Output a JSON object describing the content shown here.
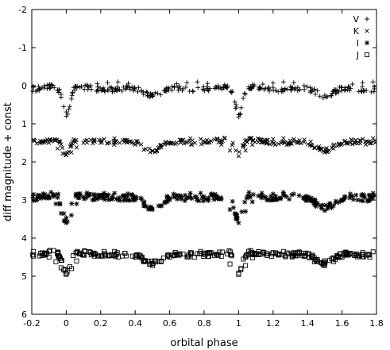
{
  "chart_data": {
    "type": "scatter",
    "title": "",
    "xlabel": "orbital phase",
    "ylabel": "diff magnitude + const",
    "xlim": [
      -0.2,
      1.8
    ],
    "ylim": [
      6,
      -2
    ],
    "y_inverted": true,
    "x_ticks": [
      "-0.2",
      "0",
      "0.2",
      "0.4",
      "0.6",
      "0.8",
      "1",
      "1.2",
      "1.4",
      "1.6",
      "1.8"
    ],
    "y_ticks": [
      "-2",
      "-1",
      "0",
      "1",
      "2",
      "3",
      "4",
      "5",
      "6"
    ],
    "grid": false,
    "legend_position": "top-right",
    "series": [
      {
        "name": "V",
        "marker": "plus",
        "baseline": 0.05,
        "primary_depth": 0.75,
        "secondary_depth": 0.25,
        "scatter": 0.07,
        "points": [
          [
            -0.19,
            0.04
          ],
          [
            -0.16,
            0.02
          ],
          [
            -0.13,
            0.06
          ],
          [
            -0.1,
            0.0
          ],
          [
            -0.07,
            0.05
          ],
          [
            -0.05,
            0.12
          ],
          [
            -0.03,
            0.3
          ],
          [
            -0.015,
            0.55
          ],
          [
            0.0,
            0.8
          ],
          [
            0.015,
            0.62
          ],
          [
            0.03,
            0.35
          ],
          [
            0.05,
            0.12
          ],
          [
            0.08,
            0.04
          ],
          [
            0.12,
            -0.02
          ],
          [
            0.18,
            -0.05
          ],
          [
            0.24,
            -0.08
          ],
          [
            0.3,
            -0.1
          ],
          [
            0.36,
            -0.06
          ],
          [
            0.42,
            0.05
          ],
          [
            0.47,
            0.18
          ],
          [
            0.5,
            0.28
          ],
          [
            0.53,
            0.2
          ],
          [
            0.58,
            0.06
          ],
          [
            0.64,
            -0.05
          ],
          [
            0.7,
            -0.08
          ],
          [
            0.76,
            -0.1
          ],
          [
            0.82,
            -0.06
          ],
          [
            0.88,
            0.0
          ],
          [
            0.93,
            0.05
          ],
          [
            0.96,
            0.18
          ],
          [
            0.985,
            0.5
          ],
          [
            1.0,
            0.82
          ],
          [
            1.015,
            0.58
          ],
          [
            1.04,
            0.22
          ],
          [
            1.08,
            0.04
          ],
          [
            1.14,
            -0.04
          ],
          [
            1.2,
            -0.07
          ],
          [
            1.26,
            -0.1
          ],
          [
            1.32,
            -0.08
          ],
          [
            1.38,
            0.0
          ],
          [
            1.44,
            0.1
          ],
          [
            1.5,
            0.25
          ],
          [
            1.55,
            0.15
          ],
          [
            1.6,
            0.05
          ],
          [
            1.66,
            -0.04
          ],
          [
            1.72,
            -0.08
          ],
          [
            1.78,
            -0.1
          ]
        ]
      },
      {
        "name": "K",
        "marker": "x",
        "baseline": 1.45,
        "primary_depth": 0.4,
        "secondary_depth": 0.3,
        "scatter": 0.06,
        "points": [
          [
            -0.19,
            1.42
          ],
          [
            -0.15,
            1.45
          ],
          [
            -0.1,
            1.5
          ],
          [
            -0.05,
            1.65
          ],
          [
            -0.02,
            1.78
          ],
          [
            0.0,
            1.82
          ],
          [
            0.03,
            1.75
          ],
          [
            0.06,
            1.62
          ],
          [
            0.1,
            1.5
          ],
          [
            0.16,
            1.45
          ],
          [
            0.22,
            1.4
          ],
          [
            0.28,
            1.38
          ],
          [
            0.34,
            1.42
          ],
          [
            0.4,
            1.55
          ],
          [
            0.45,
            1.68
          ],
          [
            0.5,
            1.72
          ],
          [
            0.55,
            1.62
          ],
          [
            0.6,
            1.5
          ],
          [
            0.66,
            1.42
          ],
          [
            0.72,
            1.38
          ],
          [
            0.78,
            1.4
          ],
          [
            0.84,
            1.45
          ],
          [
            0.9,
            1.55
          ],
          [
            0.95,
            1.7
          ],
          [
            1.0,
            1.85
          ],
          [
            1.04,
            1.7
          ],
          [
            1.08,
            1.55
          ],
          [
            1.14,
            1.45
          ],
          [
            1.2,
            1.4
          ],
          [
            1.26,
            1.38
          ],
          [
            1.32,
            1.4
          ],
          [
            1.38,
            1.48
          ],
          [
            1.44,
            1.62
          ],
          [
            1.5,
            1.75
          ],
          [
            1.55,
            1.65
          ],
          [
            1.6,
            1.52
          ],
          [
            1.66,
            1.45
          ],
          [
            1.72,
            1.4
          ],
          [
            1.78,
            1.38
          ]
        ]
      },
      {
        "name": "I",
        "marker": "star",
        "baseline": 2.9,
        "primary_depth": 0.7,
        "secondary_depth": 0.35,
        "scatter": 0.09,
        "points": [
          [
            -0.19,
            2.85
          ],
          [
            -0.15,
            2.88
          ],
          [
            -0.1,
            2.95
          ],
          [
            -0.06,
            3.1
          ],
          [
            -0.03,
            3.35
          ],
          [
            0.0,
            3.6
          ],
          [
            0.03,
            3.4
          ],
          [
            0.06,
            3.1
          ],
          [
            0.1,
            2.92
          ],
          [
            0.16,
            2.85
          ],
          [
            0.22,
            2.82
          ],
          [
            0.28,
            2.82
          ],
          [
            0.34,
            2.88
          ],
          [
            0.4,
            3.0
          ],
          [
            0.45,
            3.15
          ],
          [
            0.5,
            3.25
          ],
          [
            0.55,
            3.15
          ],
          [
            0.6,
            3.0
          ],
          [
            0.66,
            2.88
          ],
          [
            0.72,
            2.82
          ],
          [
            0.78,
            2.82
          ],
          [
            0.84,
            2.86
          ],
          [
            0.9,
            2.98
          ],
          [
            0.95,
            3.25
          ],
          [
            1.0,
            3.6
          ],
          [
            1.04,
            3.3
          ],
          [
            1.08,
            3.05
          ],
          [
            1.14,
            2.9
          ],
          [
            1.2,
            2.84
          ],
          [
            1.26,
            2.8
          ],
          [
            1.32,
            2.84
          ],
          [
            1.38,
            2.95
          ],
          [
            1.44,
            3.12
          ],
          [
            1.5,
            3.28
          ],
          [
            1.55,
            3.15
          ],
          [
            1.6,
            3.0
          ],
          [
            1.66,
            2.9
          ],
          [
            1.72,
            2.85
          ],
          [
            1.78,
            2.82
          ]
        ]
      },
      {
        "name": "J",
        "marker": "square",
        "baseline": 4.4,
        "primary_depth": 0.55,
        "secondary_depth": 0.3,
        "scatter": 0.06,
        "points": [
          [
            -0.19,
            4.35
          ],
          [
            -0.15,
            4.4
          ],
          [
            -0.1,
            4.5
          ],
          [
            -0.06,
            4.62
          ],
          [
            -0.03,
            4.78
          ],
          [
            0.0,
            4.95
          ],
          [
            0.03,
            4.8
          ],
          [
            0.06,
            4.6
          ],
          [
            0.1,
            4.45
          ],
          [
            0.16,
            4.4
          ],
          [
            0.22,
            4.35
          ],
          [
            0.28,
            4.35
          ],
          [
            0.34,
            4.4
          ],
          [
            0.4,
            4.5
          ],
          [
            0.45,
            4.62
          ],
          [
            0.5,
            4.72
          ],
          [
            0.55,
            4.62
          ],
          [
            0.6,
            4.5
          ],
          [
            0.66,
            4.42
          ],
          [
            0.72,
            4.38
          ],
          [
            0.78,
            4.35
          ],
          [
            0.84,
            4.38
          ],
          [
            0.9,
            4.48
          ],
          [
            0.95,
            4.68
          ],
          [
            1.0,
            4.95
          ],
          [
            1.04,
            4.72
          ],
          [
            1.08,
            4.52
          ],
          [
            1.14,
            4.42
          ],
          [
            1.2,
            4.38
          ],
          [
            1.26,
            4.35
          ],
          [
            1.32,
            4.38
          ],
          [
            1.38,
            4.48
          ],
          [
            1.44,
            4.62
          ],
          [
            1.5,
            4.72
          ],
          [
            1.55,
            4.62
          ],
          [
            1.6,
            4.5
          ],
          [
            1.66,
            4.42
          ],
          [
            1.72,
            4.38
          ],
          [
            1.78,
            4.36
          ]
        ]
      }
    ]
  }
}
